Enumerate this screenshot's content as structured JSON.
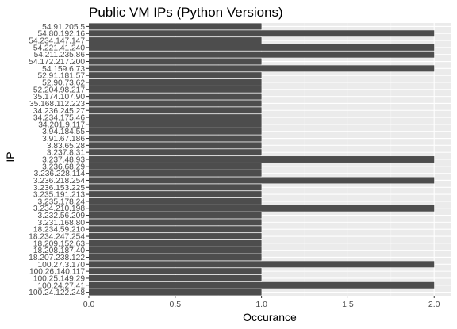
{
  "chart_data": {
    "type": "bar",
    "orientation": "horizontal",
    "title": "Public VM IPs (Python Versions)",
    "xlabel": "Occurance",
    "ylabel": "IP",
    "xlim": [
      0,
      2.1
    ],
    "x_ticks": [
      "0.0",
      "0.5",
      "1.0",
      "1.5",
      "2.0"
    ],
    "x_tick_values": [
      0,
      0.5,
      1,
      1.5,
      2
    ],
    "grid": true,
    "legend": "none",
    "colors": {
      "bar": "#4d4d4d",
      "panel_background": "#ebebeb",
      "grid_major": "#ffffff",
      "grid_minor": "#f5f5f5",
      "tick_text": "#4d4d4d",
      "text": "#000000"
    },
    "categories": [
      "54.91.205.5",
      "54.80.192.16",
      "54.234.147.147",
      "54.221.41.240",
      "54.211.235.86",
      "54.172.217.200",
      "54.159.6.73",
      "52.91.181.57",
      "52.90.73.62",
      "52.204.98.217",
      "35.174.107.90",
      "35.168.112.223",
      "34.236.245.27",
      "34.234.175.46",
      "34.201.9.117",
      "3.94.184.55",
      "3.91.67.186",
      "3.83.65.28",
      "3.237.8.31",
      "3.237.48.93",
      "3.236.68.29",
      "3.236.228.114",
      "3.236.218.254",
      "3.236.153.225",
      "3.235.191.213",
      "3.235.178.24",
      "3.234.210.198",
      "3.232.56.209",
      "3.231.168.80",
      "18.234.59.210",
      "18.234.247.254",
      "18.209.152.63",
      "18.208.187.40",
      "18.207.238.122",
      "100.27.3.170",
      "100.26.140.117",
      "100.25.149.29",
      "100.24.27.41",
      "100.24.122.248"
    ],
    "values": [
      1,
      2,
      1,
      2,
      2,
      1,
      2,
      1,
      1,
      1,
      1,
      1,
      1,
      1,
      1,
      1,
      1,
      1,
      1,
      2,
      1,
      1,
      2,
      1,
      1,
      1,
      2,
      1,
      1,
      1,
      1,
      1,
      1,
      1,
      2,
      1,
      1,
      2,
      1
    ]
  }
}
